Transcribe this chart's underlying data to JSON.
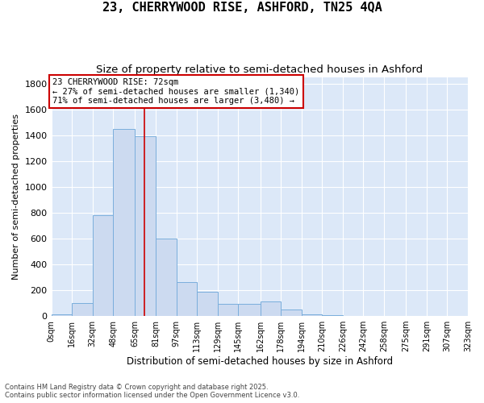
{
  "title_line1": "23, CHERRYWOOD RISE, ASHFORD, TN25 4QA",
  "title_line2": "Size of property relative to semi-detached houses in Ashford",
  "xlabel": "Distribution of semi-detached houses by size in Ashford",
  "ylabel": "Number of semi-detached properties",
  "bin_edges": [
    0,
    16,
    32,
    48,
    65,
    81,
    97,
    113,
    129,
    145,
    162,
    178,
    194,
    210,
    226,
    242,
    258,
    275,
    291,
    307,
    323
  ],
  "bin_labels": [
    "0sqm",
    "16sqm",
    "32sqm",
    "48sqm",
    "65sqm",
    "81sqm",
    "97sqm",
    "113sqm",
    "129sqm",
    "145sqm",
    "162sqm",
    "178sqm",
    "194sqm",
    "210sqm",
    "226sqm",
    "242sqm",
    "258sqm",
    "275sqm",
    "291sqm",
    "307sqm",
    "323sqm"
  ],
  "bar_heights": [
    10,
    100,
    780,
    1450,
    1390,
    600,
    260,
    185,
    95,
    95,
    110,
    50,
    15,
    5,
    3,
    2,
    1,
    1,
    1,
    1
  ],
  "bar_color": "#ccdaf0",
  "bar_edge_color": "#7aaedc",
  "property_size": 72,
  "vline_color": "#cc0000",
  "annotation_text": "23 CHERRYWOOD RISE: 72sqm\n← 27% of semi-detached houses are smaller (1,340)\n71% of semi-detached houses are larger (3,480) →",
  "annotation_box_color": "#cc0000",
  "ylim": [
    0,
    1850
  ],
  "yticks": [
    0,
    200,
    400,
    600,
    800,
    1000,
    1200,
    1400,
    1600,
    1800
  ],
  "plot_background_color": "#dce8f8",
  "grid_color": "#ffffff",
  "footer_text": "Contains HM Land Registry data © Crown copyright and database right 2025.\nContains public sector information licensed under the Open Government Licence v3.0.",
  "title_fontsize": 11,
  "subtitle_fontsize": 9.5,
  "tick_label_fontsize": 7,
  "ylabel_fontsize": 8,
  "xlabel_fontsize": 8.5,
  "annotation_fontsize": 7.5
}
